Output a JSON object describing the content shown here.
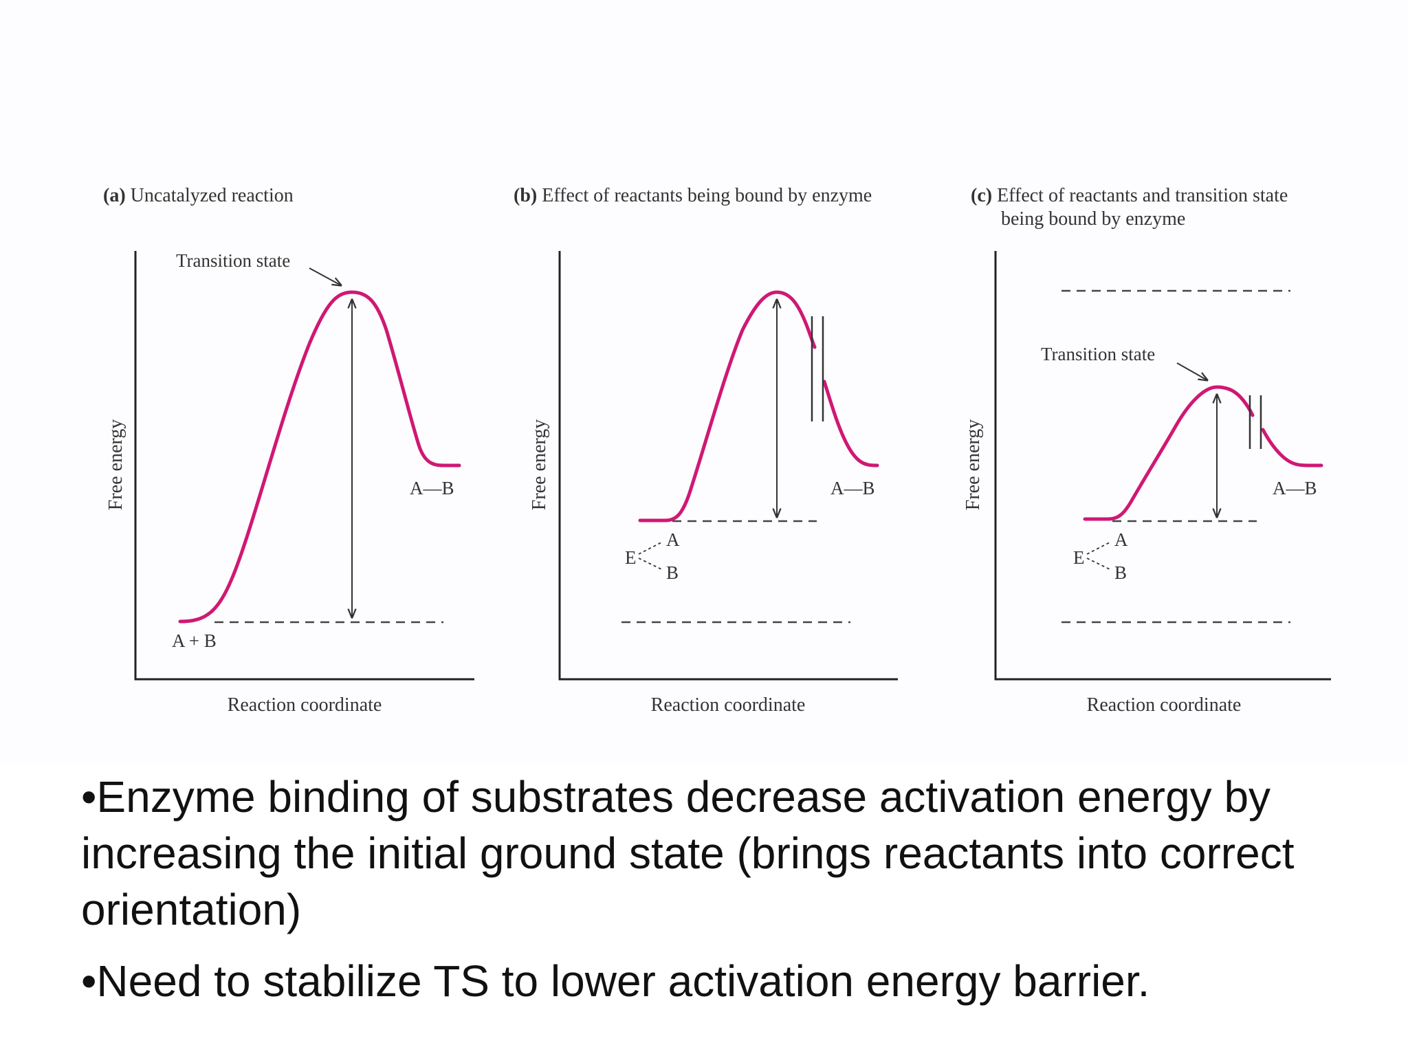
{
  "panels": [
    {
      "letter": "(a)",
      "title_lines": [
        "Uncatalyzed reaction"
      ],
      "transition_state_label": "Transition state",
      "product_label": "A—B",
      "reactant_label": "A + B",
      "ylabel": "Free energy",
      "xlabel": "Reaction coordinate"
    },
    {
      "letter": "(b)",
      "title_lines": [
        "Effect of reactants being bound by enzyme"
      ],
      "product_label": "A—B",
      "complex": {
        "enzyme": "E",
        "a": "A",
        "b": "B"
      },
      "ylabel": "Free energy",
      "xlabel": "Reaction coordinate"
    },
    {
      "letter": "(c)",
      "title_lines": [
        "Effect of reactants and transition state",
        "being bound by enzyme"
      ],
      "transition_state_label": "Transition state",
      "product_label": "A—B",
      "complex": {
        "enzyme": "E",
        "a": "A",
        "b": "B"
      },
      "ylabel": "Free energy",
      "xlabel": "Reaction coordinate"
    }
  ],
  "colors": {
    "curve": "#cf1874"
  },
  "bullets": [
    "•Enzyme binding of substrates decrease activation energy by increasing the initial ground state (brings reactants into correct orientation)",
    "•Need to stabilize TS to lower activation energy barrier."
  ]
}
